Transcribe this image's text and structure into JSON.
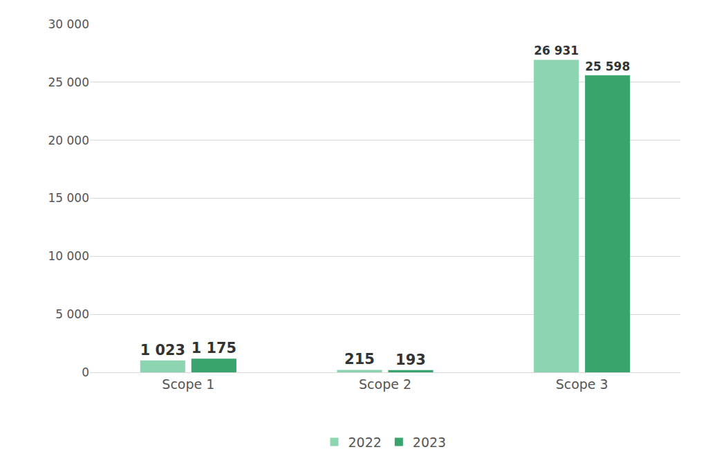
{
  "chart_data": {
    "type": "bar",
    "categories": [
      "Scope 1",
      "Scope 2",
      "Scope 3"
    ],
    "series": [
      {
        "name": "2022",
        "color": "#8dd4b1",
        "values": [
          1023,
          215,
          26931
        ],
        "value_labels": [
          "1 023",
          "215",
          "26 931"
        ]
      },
      {
        "name": "2023",
        "color": "#3aa46e",
        "values": [
          1175,
          193,
          25598
        ],
        "value_labels": [
          "1 175",
          "193",
          "25 598"
        ]
      }
    ],
    "ylim": [
      0,
      30000
    ],
    "yticks": [
      0,
      {
        "value": 5000,
        "label": "5 000"
      },
      {
        "value": 10000,
        "label": "10 000"
      },
      {
        "value": 15000,
        "label": "15 000"
      },
      {
        "value": 20000,
        "label": "20 000"
      },
      {
        "value": 25000,
        "label": "25 000"
      },
      {
        "value": 30000,
        "label": "30 000"
      }
    ],
    "grid": true,
    "legend": "bottom",
    "data_labels": true
  }
}
